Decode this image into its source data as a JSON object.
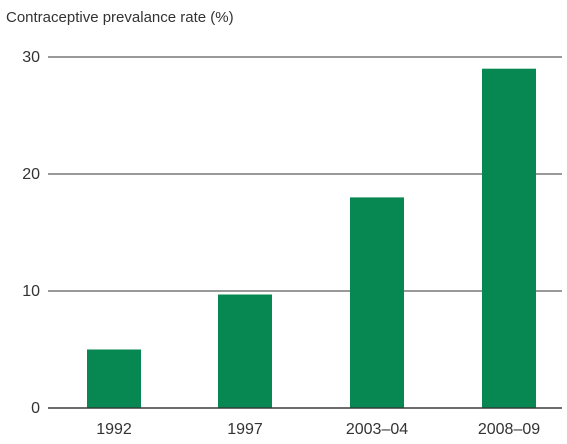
{
  "chart_data": {
    "type": "bar",
    "title": "",
    "ylabel": "Contraceptive prevalance rate (%)",
    "xlabel": "",
    "categories": [
      "1992",
      "1997",
      "2003–04",
      "2008–09"
    ],
    "values": [
      5,
      9.7,
      18,
      29
    ],
    "ylim": [
      0,
      30
    ],
    "yticks": [
      0,
      10,
      20,
      30
    ],
    "grid": true,
    "colors": {
      "bar": "#078751",
      "grid": "#333333",
      "text": "#333333"
    }
  }
}
